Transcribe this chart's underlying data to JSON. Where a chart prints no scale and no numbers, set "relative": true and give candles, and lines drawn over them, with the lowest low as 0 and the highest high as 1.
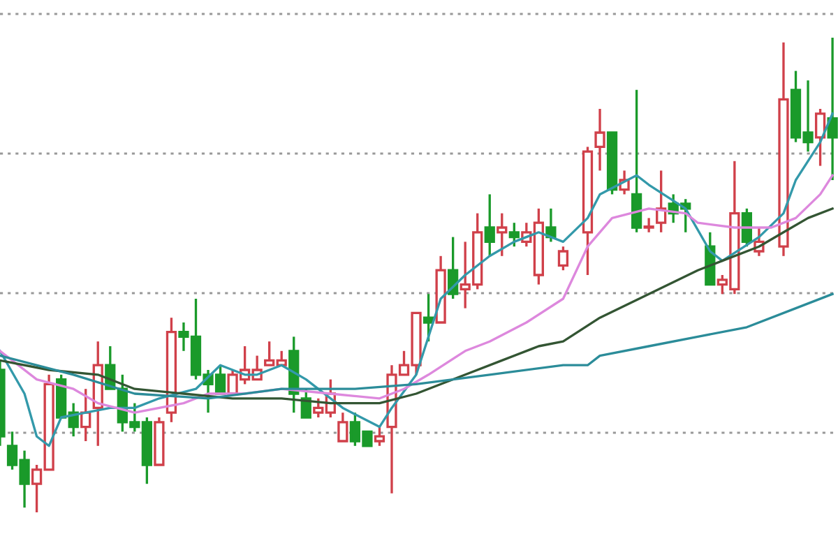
{
  "chart_data": {
    "type": "candlestick",
    "relative": true,
    "grid": "y",
    "categories": [
      null,
      null,
      null,
      null,
      null,
      null,
      null,
      null,
      null,
      null,
      null,
      null,
      null,
      null,
      null,
      null,
      null,
      null,
      null,
      null,
      null,
      null,
      null,
      null,
      null,
      null,
      null,
      null,
      null,
      null,
      null,
      null,
      null,
      null,
      null,
      null,
      null,
      null,
      null,
      null,
      null,
      null,
      null,
      null,
      null,
      null,
      null,
      null,
      null,
      null,
      null,
      null,
      null,
      null,
      null,
      null,
      null,
      null,
      null,
      null,
      null,
      null,
      null,
      null,
      null,
      null,
      null,
      null,
      null
    ],
    "ohlc": [
      [
        0.3,
        0.32,
        0.14,
        0.16
      ],
      [
        0.14,
        0.17,
        0.09,
        0.1
      ],
      [
        0.11,
        0.13,
        0.01,
        0.06
      ],
      [
        0.06,
        0.1,
        0,
        0.09
      ],
      [
        0.09,
        0.29,
        0.09,
        0.27
      ],
      [
        0.28,
        0.29,
        0.2,
        0.2
      ],
      [
        0.21,
        0.23,
        0.16,
        0.18
      ],
      [
        0.18,
        0.26,
        0.15,
        0.21
      ],
      [
        0.22,
        0.36,
        0.14,
        0.31
      ],
      [
        0.31,
        0.35,
        0.26,
        0.26
      ],
      [
        0.26,
        0.29,
        0.17,
        0.19
      ],
      [
        0.19,
        0.23,
        0.17,
        0.18
      ],
      [
        0.19,
        0.2,
        0.06,
        0.1
      ],
      [
        0.1,
        0.2,
        0.1,
        0.19
      ],
      [
        0.21,
        0.41,
        0.19,
        0.38
      ],
      [
        0.38,
        0.4,
        0.34,
        0.37
      ],
      [
        0.37,
        0.45,
        0.28,
        0.29
      ],
      [
        0.29,
        0.3,
        0.21,
        0.27
      ],
      [
        0.29,
        0.31,
        0.25,
        0.25
      ],
      [
        0.25,
        0.3,
        0.25,
        0.29
      ],
      [
        0.28,
        0.35,
        0.27,
        0.3
      ],
      [
        0.28,
        0.33,
        0.28,
        0.3
      ],
      [
        0.31,
        0.36,
        0.31,
        0.32
      ],
      [
        0.31,
        0.34,
        0.31,
        0.32
      ],
      [
        0.34,
        0.37,
        0.21,
        0.25
      ],
      [
        0.24,
        0.26,
        0.2,
        0.2
      ],
      [
        0.21,
        0.24,
        0.2,
        0.22
      ],
      [
        0.21,
        0.28,
        0.2,
        0.25
      ],
      [
        0.15,
        0.21,
        0.15,
        0.19
      ],
      [
        0.19,
        0.21,
        0.14,
        0.15
      ],
      [
        0.17,
        0.17,
        0.14,
        0.14
      ],
      [
        0.15,
        0.18,
        0.14,
        0.16
      ],
      [
        0.18,
        0.31,
        0.04,
        0.29
      ],
      [
        0.29,
        0.34,
        0.29,
        0.31
      ],
      [
        0.31,
        0.42,
        0.29,
        0.42
      ],
      [
        0.41,
        0.46,
        0.36,
        0.4
      ],
      [
        0.4,
        0.54,
        0.4,
        0.51
      ],
      [
        0.51,
        0.58,
        0.45,
        0.46
      ],
      [
        0.47,
        0.57,
        0.43,
        0.48
      ],
      [
        0.48,
        0.63,
        0.47,
        0.59
      ],
      [
        0.6,
        0.67,
        0.54,
        0.57
      ],
      [
        0.59,
        0.63,
        0.54,
        0.6
      ],
      [
        0.59,
        0.61,
        0.56,
        0.58
      ],
      [
        0.57,
        0.61,
        0.56,
        0.59
      ],
      [
        0.5,
        0.64,
        0.48,
        0.61
      ],
      [
        0.6,
        0.64,
        0.57,
        0.58
      ],
      [
        0.52,
        0.56,
        0.51,
        0.55
      ],
      null,
      [
        0.59,
        0.77,
        0.5,
        0.76
      ],
      [
        0.77,
        0.85,
        0.72,
        0.8
      ],
      [
        0.8,
        0.8,
        0.67,
        0.68
      ],
      [
        0.68,
        0.72,
        0.67,
        0.7
      ],
      [
        0.67,
        0.89,
        0.59,
        0.6
      ],
      [
        0.6,
        0.62,
        0.59,
        0.6
      ],
      [
        0.61,
        0.72,
        0.59,
        0.64
      ],
      [
        0.65,
        0.67,
        0.61,
        0.63
      ],
      [
        0.65,
        0.66,
        0.59,
        0.64
      ],
      null,
      [
        0.56,
        0.59,
        0.48,
        0.48
      ],
      [
        0.48,
        0.5,
        0.46,
        0.49
      ],
      [
        0.47,
        0.74,
        0.46,
        0.63
      ],
      [
        0.63,
        0.64,
        0.56,
        0.57
      ],
      [
        0.55,
        0.6,
        0.54,
        0.57
      ],
      null,
      [
        0.56,
        0.99,
        0.54,
        0.87
      ],
      [
        0.89,
        0.93,
        0.78,
        0.79
      ],
      [
        0.8,
        0.91,
        0.76,
        0.78
      ],
      [
        0.79,
        0.85,
        0.73,
        0.84
      ],
      [
        0.83,
        1,
        0.7,
        0.79
      ]
    ],
    "series": [
      {
        "type": "line",
        "color": "#3399aa",
        "values": [
          0.34,
          null,
          0.25,
          0.16,
          0.14,
          0.2,
          null,
          0.21,
          null,
          0.22,
          null,
          0.22,
          null,
          0.24,
          null,
          null,
          0.26,
          null,
          0.31,
          null,
          0.29,
          0.29,
          null,
          0.31,
          null,
          0.28,
          null,
          null,
          0.22,
          null,
          null,
          0.18,
          0.22,
          null,
          0.29,
          null,
          0.45,
          null,
          0.5,
          null,
          0.54,
          null,
          0.57,
          null,
          0.59,
          null,
          0.57,
          null,
          0.62,
          0.67,
          null,
          null,
          0.71,
          0.69,
          null,
          null,
          0.64,
          null,
          0.55,
          0.53,
          null,
          null,
          0.58,
          null,
          0.63,
          0.7,
          null,
          0.78,
          0.84
        ]
      },
      {
        "type": "line",
        "color": "#dd88dd",
        "values": [
          0.34,
          null,
          null,
          0.28,
          null,
          null,
          0.26,
          null,
          0.23,
          null,
          null,
          0.21,
          null,
          null,
          null,
          0.23,
          null,
          0.25,
          null,
          null,
          0.25,
          null,
          null,
          0.26,
          null,
          null,
          null,
          0.25,
          null,
          null,
          null,
          0.24,
          null,
          0.26,
          null,
          0.29,
          null,
          null,
          0.34,
          null,
          0.36,
          null,
          null,
          0.4,
          null,
          null,
          0.45,
          null,
          0.56,
          null,
          0.62,
          null,
          null,
          0.64,
          null,
          null,
          0.63,
          0.61,
          null,
          null,
          0.6,
          null,
          null,
          0.6,
          null,
          0.62,
          null,
          0.67,
          0.71
        ]
      },
      {
        "type": "line",
        "color": "#335533",
        "values": [
          0.32,
          null,
          null,
          null,
          0.3,
          null,
          null,
          null,
          0.29,
          null,
          null,
          0.26,
          null,
          null,
          null,
          0.25,
          null,
          null,
          null,
          0.24,
          null,
          null,
          null,
          0.24,
          null,
          null,
          null,
          0.23,
          null,
          null,
          null,
          0.23,
          null,
          null,
          0.25,
          null,
          null,
          null,
          0.29,
          null,
          null,
          0.32,
          null,
          null,
          0.35,
          null,
          0.36,
          null,
          null,
          0.41,
          null,
          null,
          null,
          0.46,
          null,
          null,
          null,
          0.51,
          null,
          0.53,
          null,
          null,
          0.56,
          null,
          0.59,
          null,
          0.62,
          null,
          0.64
        ]
      },
      {
        "type": "line",
        "color": "#2b8c99",
        "values": [
          0.33,
          null,
          null,
          null,
          null,
          null,
          0.29,
          null,
          null,
          null,
          null,
          0.25,
          null,
          null,
          null,
          null,
          null,
          0.24,
          null,
          null,
          null,
          null,
          null,
          0.26,
          null,
          null,
          null,
          null,
          null,
          0.26,
          null,
          null,
          null,
          null,
          0.27,
          null,
          null,
          null,
          null,
          null,
          0.29,
          null,
          null,
          null,
          null,
          null,
          0.31,
          null,
          0.31,
          0.33,
          null,
          null,
          null,
          0.35,
          null,
          null,
          null,
          0.37,
          null,
          null,
          null,
          0.39,
          null,
          null,
          null,
          0.43,
          null,
          null,
          0.46
        ]
      }
    ]
  }
}
